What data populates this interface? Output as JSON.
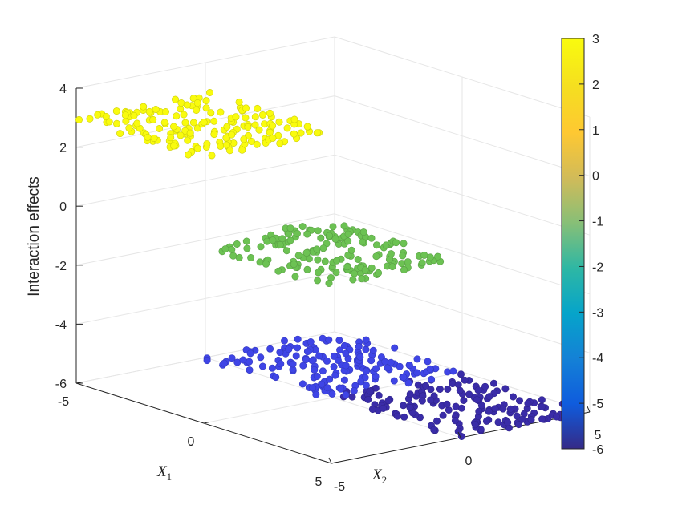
{
  "chart_data": {
    "type": "scatter3d",
    "xlabel": "X",
    "xlabel_sub": "1",
    "ylabel": "X",
    "ylabel_sub": "2",
    "zlabel": "Interaction effects",
    "x_ticks": [
      "-5",
      "0",
      "5"
    ],
    "y_ticks": [
      "-5",
      "0",
      "5"
    ],
    "z_ticks": [
      "4",
      "2",
      "0",
      "-2",
      "-4",
      "-6"
    ],
    "xlim": [
      -5,
      5
    ],
    "ylim": [
      -5,
      5
    ],
    "zlim": [
      -6,
      4
    ],
    "grid": true,
    "colorbar": {
      "colormap": "parula",
      "range": [
        -6,
        3
      ],
      "ticks": [
        "3",
        "2",
        "1",
        "0",
        "-1",
        "-2",
        "-3",
        "-4",
        "-5",
        "-6"
      ]
    },
    "clusters": [
      {
        "region": "x<0, y<0",
        "z": 3.0,
        "color_value": 3.0,
        "color": "#f9fb0e",
        "count": 160
      },
      {
        "region": "x>0, y<0",
        "z": 0.0,
        "color_value": 0.0,
        "color": "#6cc253",
        "count": 160
      },
      {
        "region": "x<0, y>0",
        "z": -6.0,
        "color_value": -5.0,
        "color": "#3f45e6",
        "count": 160
      },
      {
        "region": "x>0, y>0",
        "z": -6.0,
        "color_value": -6.0,
        "color": "#3a2ca8",
        "count": 160
      }
    ]
  }
}
